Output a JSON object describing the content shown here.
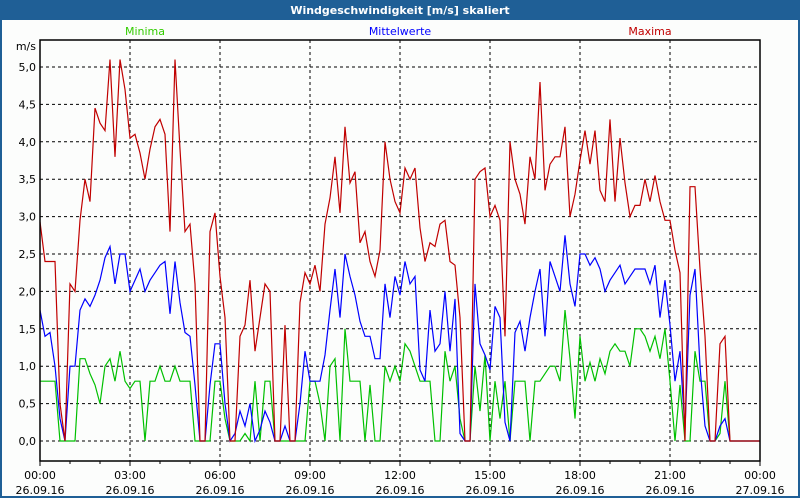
{
  "window": {
    "title": "Windgeschwindigkeit [m/s] skaliert"
  },
  "chart_data": {
    "type": "line",
    "title": "Windgeschwindigkeit [m/s] skaliert",
    "ylabel": "m/s",
    "xlabel": "",
    "ylim": [
      0,
      5.0
    ],
    "xlim_hours": [
      0,
      24
    ],
    "x_step_minutes": 10,
    "grid": true,
    "legend_placement": "top",
    "y_ticks": [
      "0,0",
      "0,5",
      "1,0",
      "1,5",
      "2,0",
      "2,5",
      "3,0",
      "3,5",
      "4,0",
      "4,5",
      "5,0"
    ],
    "x_ticks": [
      {
        "time": "00:00",
        "date": "26.09.16"
      },
      {
        "time": "03:00",
        "date": "26.09.16"
      },
      {
        "time": "06:00",
        "date": "26.09.16"
      },
      {
        "time": "09:00",
        "date": "26.09.16"
      },
      {
        "time": "12:00",
        "date": "26.09.16"
      },
      {
        "time": "15:00",
        "date": "26.09.16"
      },
      {
        "time": "18:00",
        "date": "26.09.16"
      },
      {
        "time": "21:00",
        "date": "26.09.16"
      },
      {
        "time": "00:00",
        "date": "27.09.16"
      }
    ],
    "series": [
      {
        "name": "Minima",
        "color": "#00c000",
        "legend_color": "#33cc00",
        "values": [
          0.8,
          0.8,
          0.8,
          0.8,
          0,
          0,
          0,
          0,
          1.1,
          1.1,
          0.9,
          0.75,
          0.5,
          1.0,
          1.1,
          0.8,
          1.2,
          0.8,
          0.7,
          0.8,
          0.8,
          0,
          0.8,
          0.8,
          1.0,
          0.8,
          0.8,
          1.0,
          0.8,
          0.8,
          0.8,
          0,
          0,
          0,
          0,
          0.8,
          0.8,
          0.3,
          0,
          0,
          0,
          0.1,
          0,
          0.8,
          0,
          0.8,
          0.8,
          0,
          0,
          0,
          0,
          0,
          0,
          0,
          0.8,
          0.8,
          0.5,
          0,
          1.0,
          1.1,
          0,
          1.5,
          0.8,
          0.8,
          0.8,
          0,
          0.75,
          0,
          0,
          1.0,
          0.8,
          1.0,
          0.8,
          1.3,
          1.2,
          1.0,
          0.8,
          0.8,
          0.8,
          0,
          0,
          1.2,
          0.8,
          1.0,
          0.3,
          0,
          0,
          1.0,
          0.4,
          1.15,
          0,
          0.8,
          0.3,
          0.8,
          0,
          0.8,
          0.8,
          0.8,
          0,
          0.8,
          0.8,
          0.9,
          1.0,
          1.0,
          0.8,
          1.75,
          1.1,
          0.3,
          1.4,
          0.8,
          1.05,
          0.8,
          1.1,
          0.9,
          1.2,
          1.3,
          1.2,
          1.2,
          1.0,
          1.5,
          1.5,
          1.4,
          1.2,
          1.4,
          1.1,
          1.5,
          0.8,
          0,
          0.75,
          0,
          0,
          1.2,
          0.8,
          0.8,
          0,
          0,
          0.1,
          0.8,
          0,
          0,
          0,
          0,
          0,
          0,
          0
        ]
      },
      {
        "name": "Mittelwerte",
        "color": "#0000ff",
        "legend_color": "#0000ff",
        "values": [
          1.75,
          1.4,
          1.45,
          1.0,
          0.3,
          0,
          1.0,
          1.0,
          1.75,
          1.9,
          1.8,
          1.95,
          2.15,
          2.45,
          2.6,
          2.1,
          2.5,
          2.5,
          2.0,
          2.15,
          2.3,
          2.0,
          2.15,
          2.25,
          2.35,
          2.4,
          1.7,
          2.4,
          1.85,
          1.45,
          1.4,
          0.75,
          0,
          0,
          0.75,
          1.3,
          1.3,
          0.5,
          0,
          0.1,
          0.4,
          0.2,
          0.5,
          0,
          0.15,
          0.4,
          0.25,
          0,
          0,
          0.2,
          0,
          0,
          0.5,
          1.2,
          0.8,
          0.8,
          0.8,
          1.15,
          1.75,
          2.3,
          1.65,
          2.5,
          2.2,
          1.95,
          1.6,
          1.4,
          1.4,
          1.1,
          1.1,
          2.1,
          1.65,
          2.2,
          1.95,
          2.4,
          2.1,
          2.2,
          0.95,
          0.8,
          1.75,
          1.2,
          1.3,
          2.0,
          1.2,
          1.9,
          0.1,
          0,
          0,
          2.1,
          1.3,
          1.15,
          0.95,
          1.8,
          1.65,
          0.25,
          0,
          1.45,
          1.6,
          1.2,
          1.65,
          2.0,
          2.3,
          1.4,
          2.4,
          2.2,
          2.0,
          2.75,
          2.1,
          1.8,
          2.5,
          2.5,
          2.35,
          2.45,
          2.3,
          2.0,
          2.15,
          2.25,
          2.35,
          2.1,
          2.2,
          2.3,
          2.3,
          2.3,
          2.1,
          2.35,
          1.65,
          2.15,
          1.55,
          0.8,
          1.2,
          0.15,
          1.95,
          2.3,
          1.0,
          0.2,
          0,
          0,
          0.2,
          0.3,
          0,
          0,
          0,
          0,
          0,
          0,
          0
        ]
      },
      {
        "name": "Maxima",
        "color": "#c00000",
        "legend_color": "#c00000",
        "values": [
          2.93,
          2.4,
          2.4,
          2.4,
          0.5,
          0,
          2.1,
          2.0,
          2.95,
          3.5,
          3.2,
          4.45,
          4.25,
          4.15,
          5.1,
          3.8,
          5.1,
          4.7,
          4.05,
          4.1,
          3.85,
          3.5,
          3.9,
          4.2,
          4.3,
          4.1,
          2.8,
          5.1,
          3.9,
          2.8,
          2.9,
          2.1,
          0,
          0,
          2.8,
          3.05,
          2.2,
          1.65,
          0,
          0,
          1.4,
          1.55,
          2.15,
          1.2,
          1.65,
          2.1,
          2.0,
          0,
          0,
          1.55,
          0,
          0,
          1.85,
          2.25,
          2.1,
          2.35,
          2.0,
          2.9,
          3.25,
          3.8,
          3.05,
          4.2,
          3.45,
          3.6,
          2.65,
          2.8,
          2.4,
          2.2,
          2.55,
          4.0,
          3.5,
          3.2,
          3.05,
          3.65,
          3.5,
          3.65,
          2.85,
          2.4,
          2.65,
          2.6,
          2.9,
          2.95,
          2.4,
          2.35,
          1.65,
          0,
          0,
          3.5,
          3.6,
          3.65,
          3.0,
          3.15,
          2.95,
          1.4,
          4.0,
          3.5,
          3.3,
          2.9,
          3.8,
          3.5,
          4.8,
          3.35,
          3.7,
          3.8,
          3.8,
          4.2,
          3.0,
          3.3,
          3.75,
          4.15,
          3.7,
          4.15,
          3.35,
          3.2,
          4.3,
          3.2,
          4.05,
          3.45,
          3.0,
          3.15,
          3.15,
          3.5,
          3.2,
          3.55,
          3.2,
          2.95,
          2.95,
          2.55,
          2.25,
          0,
          3.4,
          3.4,
          2.3,
          1.4,
          0,
          0,
          1.3,
          1.4,
          0,
          0,
          0,
          0,
          0,
          0,
          0
        ]
      }
    ]
  }
}
